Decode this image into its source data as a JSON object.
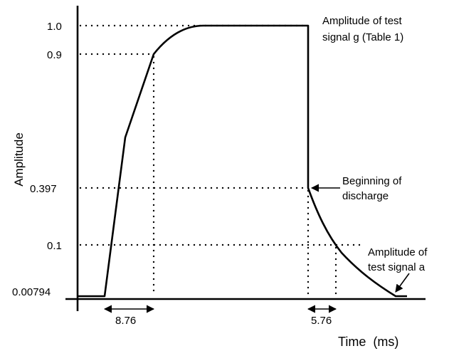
{
  "diagram": {
    "y_axis_label": "Amplitude",
    "x_axis_label": "Time  (ms)",
    "y_ticks": [
      "1.0",
      "0.9",
      "0.397",
      "0.1",
      "0.00794"
    ],
    "annotations": {
      "top_line1": "Amplitude of test",
      "top_line2": "signal g (Table 1)",
      "discharge_line1": "Beginning of",
      "discharge_line2": "discharge",
      "end_line1": "Amplitude of",
      "end_line2": "test signal a"
    },
    "intervals": {
      "rise": "8.76",
      "fall": "5.76"
    }
  }
}
